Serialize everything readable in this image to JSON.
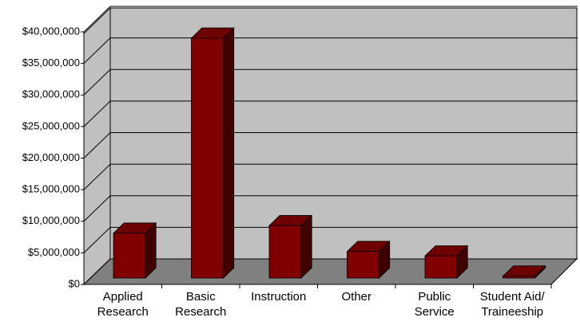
{
  "chart_data": {
    "type": "bar3d",
    "categories": [
      "Applied Research",
      "Basic Research",
      "Instruction",
      "Other",
      "Public Service",
      "Student Aid/ Traineeship"
    ],
    "values": [
      7100000,
      38000000,
      8300000,
      4200000,
      3500000,
      300000
    ],
    "color": "#800000",
    "ylim": [
      0,
      40000000
    ],
    "yticks": [
      {
        "value": 0,
        "label": "$0"
      },
      {
        "value": 5000000,
        "label": "$5,000,000"
      },
      {
        "value": 10000000,
        "label": "$10,000,000"
      },
      {
        "value": 15000000,
        "label": "$15,000,000"
      },
      {
        "value": 20000000,
        "label": "$20,000,000"
      },
      {
        "value": 25000000,
        "label": "$25,000,000"
      },
      {
        "value": 30000000,
        "label": "$30,000,000"
      },
      {
        "value": 35000000,
        "label": "$35,000,000"
      },
      {
        "value": 40000000,
        "label": "$40,000,000"
      }
    ],
    "grid": true
  }
}
